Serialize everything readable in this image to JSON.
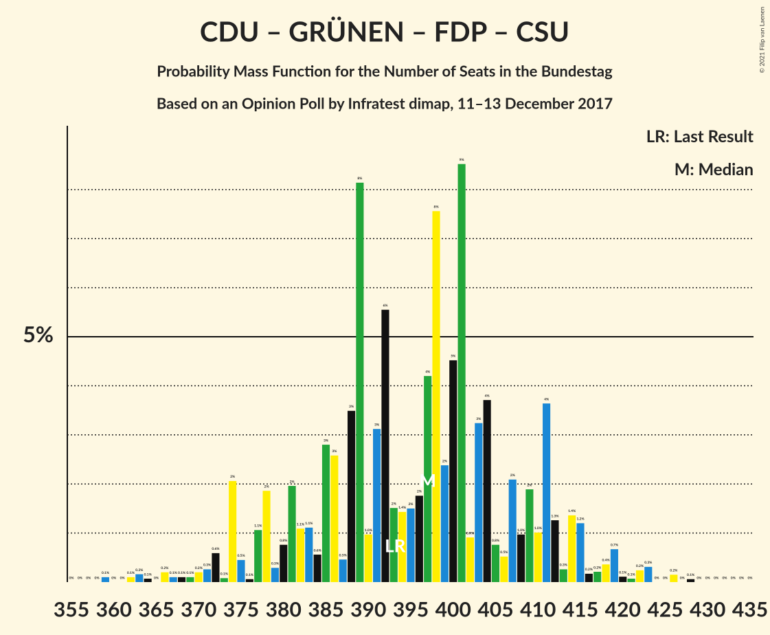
{
  "chart_data": {
    "type": "bar",
    "title": "CDU – GRÜNEN – FDP – CSU",
    "subtitle": "Probability Mass Function for the Number of Seats in the Bundestag",
    "subtitle2": "Based on an Opinion Poll by Infratest dimap, 11–13 December 2017",
    "copyright": "© 2021 Filip van Laenen",
    "legend": [
      "LR: Last Result",
      "M: Median"
    ],
    "x": [
      355,
      356,
      357,
      358,
      359,
      360,
      361,
      362,
      363,
      364,
      365,
      366,
      367,
      368,
      369,
      370,
      371,
      372,
      373,
      374,
      375,
      376,
      377,
      378,
      379,
      380,
      381,
      382,
      383,
      384,
      385,
      386,
      387,
      388,
      389,
      390,
      391,
      392,
      393,
      394,
      395,
      396,
      397,
      398,
      399,
      400,
      401,
      402,
      403,
      404,
      405,
      406,
      407,
      408,
      409,
      410,
      411,
      412,
      413,
      414,
      415,
      416,
      417,
      418,
      419,
      420,
      421,
      422,
      423,
      424,
      425,
      426,
      427,
      428,
      429,
      430,
      431,
      432,
      433,
      434,
      435
    ],
    "values": [
      0,
      0,
      0,
      0,
      0.1,
      0,
      0,
      0.1,
      0.16,
      0.07,
      0,
      0.2,
      0.1,
      0.1,
      0.1,
      0.2,
      0.26,
      0.59,
      0.08,
      2.06,
      0.45,
      0.06,
      1.06,
      1.86,
      0.29,
      0.76,
      1.96,
      1.09,
      1.11,
      0.56,
      2.8,
      2.58,
      0.46,
      3.49,
      8.14,
      0.97,
      3.12,
      5.55,
      1.51,
      1.43,
      1.5,
      1.76,
      4.2,
      7.56,
      2.38,
      4.52,
      8.52,
      0.91,
      3.24,
      3.71,
      0.76,
      0.52,
      2.09,
      0.97,
      1.89,
      1.01,
      3.64,
      1.26,
      0.26,
      1.36,
      1.2,
      0.17,
      0.21,
      0.36,
      0.67,
      0.11,
      0.07,
      0.24,
      0.31,
      0,
      0,
      0.15,
      0,
      0.06,
      0,
      0,
      0,
      0,
      0,
      0,
      0
    ],
    "value_labels": [
      "0%",
      "0%",
      "0%",
      "0%",
      "0.1%",
      "0%",
      "0%",
      "0.1%",
      "0.2%",
      "0.1%",
      "0%",
      "0.2%",
      "0.1%",
      "0.1%",
      "0.1%",
      "0.2%",
      "0.3%",
      "0.6%",
      "0.1%",
      "2%",
      "0.5%",
      "0.1%",
      "1.1%",
      "2%",
      "0.3%",
      "0.8%",
      "2%",
      "1.1%",
      "1.1%",
      "0.6%",
      "3%",
      "3%",
      "0.5%",
      "3%",
      "8%",
      "1.0%",
      "3%",
      "6%",
      "2%",
      "1.4%",
      "2%",
      "2%",
      "4%",
      "8%",
      "2%",
      "5%",
      "9%",
      "0.9%",
      "3%",
      "4%",
      "0.8%",
      "0.5%",
      "2%",
      "1.0%",
      "2%",
      "1.0%",
      "4%",
      "1.3%",
      "0.3%",
      "1.4%",
      "1.2%",
      "0.2%",
      "0.2%",
      "0.4%",
      "0.7%",
      "0.1%",
      "0.1%",
      "0.2%",
      "0.3%",
      "0%",
      "0%",
      "0.2%",
      "0%",
      "0.1%",
      "0%",
      "0%",
      "0%",
      "0%",
      "0%",
      "0%",
      "0%"
    ],
    "bar_colors": [
      "#1a88d6",
      "#111111",
      "#22a63a",
      "#ffee00"
    ],
    "xlim": [
      355,
      435
    ],
    "xticks": [
      355,
      360,
      365,
      370,
      375,
      380,
      385,
      390,
      395,
      400,
      405,
      410,
      415,
      420,
      425,
      430,
      435
    ],
    "ylim": [
      0,
      9.3
    ],
    "yticks": [
      {
        "value": 5,
        "label": "5%"
      }
    ],
    "minor_gridlines": [
      1,
      2,
      3,
      4,
      6,
      7,
      8
    ],
    "last_result": {
      "x": 393,
      "label": "LR"
    },
    "median": {
      "x": 397,
      "label": "M"
    }
  }
}
